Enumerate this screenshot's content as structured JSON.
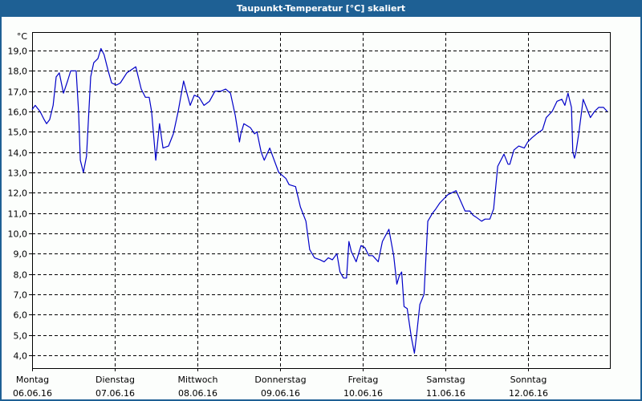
{
  "window": {
    "title": "Taupunkt-Temperatur [°C] skaliert"
  },
  "colors": {
    "titlebar": "#1e6094",
    "background": "#fcfefc",
    "line": "#0000c8",
    "grid": "#000000"
  },
  "chart_data": {
    "type": "line",
    "title": "Taupunkt-Temperatur [°C] skaliert",
    "xlabel": "",
    "ylabel": "°C",
    "y_unit": "°C",
    "ylim": [
      3.3,
      19.9
    ],
    "yticks": [
      "19,0",
      "18,0",
      "17,0",
      "16,0",
      "15,0",
      "14,0",
      "13,0",
      "12,0",
      "11,0",
      "10,0",
      "9,0",
      "8,0",
      "7,0",
      "6,0",
      "5,0",
      "4,0"
    ],
    "ytick_values": [
      19,
      18,
      17,
      16,
      15,
      14,
      13,
      12,
      11,
      10,
      9,
      8,
      7,
      6,
      5,
      4
    ],
    "grid": true,
    "grid_style": "dashed",
    "legend": null,
    "x_unit": "hours since Montag 06.06.16 00:00",
    "xlim": [
      0,
      168
    ],
    "x_ticks": [
      {
        "day": "Montag",
        "date": "06.06.16",
        "hour": 0
      },
      {
        "day": "Dienstag",
        "date": "07.06.16",
        "hour": 24
      },
      {
        "day": "Mittwoch",
        "date": "08.06.16",
        "hour": 48
      },
      {
        "day": "Donnerstag",
        "date": "09.06.16",
        "hour": 72
      },
      {
        "day": "Freitag",
        "date": "10.06.16",
        "hour": 96
      },
      {
        "day": "Samstag",
        "date": "11.06.16",
        "hour": 120
      },
      {
        "day": "Sonntag",
        "date": "12.06.16",
        "hour": 144
      }
    ],
    "series": [
      {
        "name": "Taupunkt",
        "x": [
          0,
          0.9,
          2.3,
          3.5,
          4.2,
          5.1,
          6.1,
          7.0,
          7.9,
          9.1,
          10.3,
          11.2,
          12.8,
          13.5,
          14.0,
          14.9,
          15.8,
          17.0,
          17.9,
          19.1,
          20.0,
          20.9,
          22.1,
          23.1,
          24.5,
          25.6,
          27.5,
          30.1,
          31.7,
          32.9,
          34.0,
          34.7,
          35.9,
          37.0,
          38.0,
          39.6,
          41.0,
          42.4,
          44.0,
          45.9,
          47.1,
          48.5,
          49.9,
          51.5,
          53.1,
          54.8,
          56.2,
          57.6,
          59.0,
          60.2,
          60.6,
          61.5,
          63.4,
          64.6,
          65.3,
          66.5,
          67.4,
          69.0,
          71.6,
          73.7,
          74.6,
          76.5,
          77.9,
          79.5,
          80.6,
          82.0,
          83.6,
          84.8,
          86.0,
          87.2,
          88.5,
          89.4,
          90.4,
          91.3,
          92.0,
          92.7,
          94.1,
          95.5,
          96.6,
          97.8,
          98.9,
          100.5,
          101.7,
          103.6,
          105.0,
          105.9,
          106.6,
          107.3,
          108.0,
          108.9,
          110.1,
          111.0,
          111.7,
          112.6,
          113.8,
          114.9,
          116.3,
          117.2,
          118.4,
          120.7,
          123.1,
          125.7,
          127.1,
          128.0,
          128.9,
          130.5,
          131.5,
          132.9,
          134.0,
          135.2,
          137.0,
          138.2,
          138.7,
          139.9,
          141.3,
          142.9,
          143.9,
          145.1,
          146.5,
          148.2,
          149.3,
          151.0,
          152.4,
          153.8,
          154.7,
          155.6,
          156.6,
          157.0,
          157.5,
          157.9,
          158.8,
          160.0,
          161.4,
          162.1,
          163.3,
          164.5,
          165.9,
          167.0
        ],
        "values": [
          16.1,
          16.3,
          16.0,
          15.6,
          15.4,
          15.6,
          16.3,
          17.7,
          17.9,
          16.9,
          17.5,
          18.0,
          18.0,
          16.0,
          13.6,
          13.0,
          13.8,
          17.7,
          18.4,
          18.6,
          19.1,
          18.8,
          18.0,
          17.4,
          17.3,
          17.4,
          17.9,
          18.2,
          17.1,
          16.7,
          16.7,
          16.0,
          13.6,
          15.4,
          14.2,
          14.3,
          14.9,
          16.0,
          17.5,
          16.3,
          16.8,
          16.7,
          16.3,
          16.5,
          17.0,
          17.0,
          17.1,
          16.9,
          15.8,
          14.5,
          14.9,
          15.4,
          15.2,
          14.9,
          15.0,
          14.0,
          13.6,
          14.2,
          13.0,
          12.7,
          12.4,
          12.3,
          11.3,
          10.6,
          9.2,
          8.8,
          8.7,
          8.6,
          8.8,
          8.7,
          9.0,
          8.1,
          7.8,
          7.8,
          9.6,
          9.1,
          8.6,
          9.4,
          9.3,
          8.9,
          8.9,
          8.6,
          9.6,
          10.2,
          8.9,
          7.5,
          7.9,
          8.1,
          6.4,
          6.3,
          4.9,
          4.1,
          5.1,
          6.5,
          7.0,
          10.6,
          11.0,
          11.2,
          11.5,
          11.9,
          12.1,
          11.1,
          11.1,
          10.9,
          10.8,
          10.6,
          10.7,
          10.7,
          11.2,
          13.3,
          13.9,
          13.4,
          13.4,
          14.1,
          14.3,
          14.2,
          14.5,
          14.7,
          14.9,
          15.1,
          15.7,
          16.0,
          16.5,
          16.6,
          16.3,
          16.9,
          16.2,
          14.0,
          13.7,
          14.0,
          15.0,
          16.6,
          16.0,
          15.7,
          16.0,
          16.2,
          16.2,
          16.0
        ]
      }
    ]
  }
}
